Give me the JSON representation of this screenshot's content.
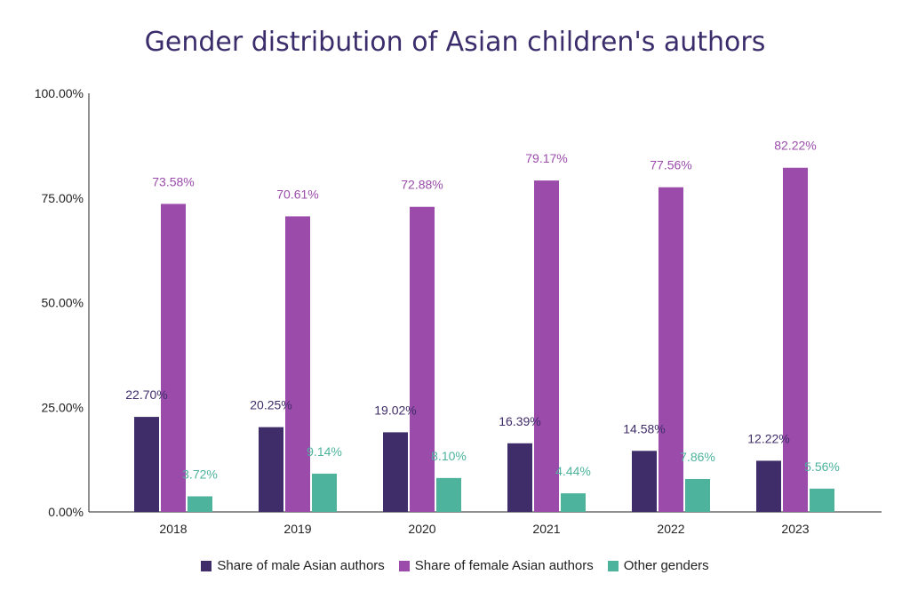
{
  "chart_data": {
    "type": "bar",
    "title": "Gender distribution of Asian children's authors",
    "categories": [
      "2018",
      "2019",
      "2020",
      "2021",
      "2022",
      "2023"
    ],
    "series": [
      {
        "name": "Share of male Asian authors",
        "color": "#3f2d6a",
        "label_color": "#3f2d6a",
        "values": [
          22.7,
          20.25,
          19.02,
          16.39,
          14.58,
          12.22
        ],
        "labels": [
          "22.70%",
          "20.25%",
          "19.02%",
          "16.39%",
          "14.58%",
          "12.22%"
        ]
      },
      {
        "name": "Share of female Asian authors",
        "color": "#9b4cab",
        "label_color": "#9b4cab",
        "values": [
          73.58,
          70.61,
          72.88,
          79.17,
          77.56,
          82.22
        ],
        "labels": [
          "73.58%",
          "70.61%",
          "72.88%",
          "79.17%",
          "77.56%",
          "82.22%"
        ]
      },
      {
        "name": "Other genders",
        "color": "#4db39c",
        "label_color": "#4db39c",
        "values": [
          3.72,
          9.14,
          8.1,
          4.44,
          7.86,
          5.56
        ],
        "labels": [
          "3.72%",
          "9.14%",
          "8.10%",
          "4.44%",
          "7.86%",
          "5.56%"
        ]
      }
    ],
    "y_ticks": [
      "0.00%",
      "25.00%",
      "50.00%",
      "75.00%",
      "100.00%"
    ],
    "y_tick_values": [
      0,
      25,
      50,
      75,
      100
    ],
    "ylim": [
      0,
      100
    ],
    "xlabel": "",
    "ylabel": "",
    "grid": false,
    "legend_position": "bottom"
  }
}
